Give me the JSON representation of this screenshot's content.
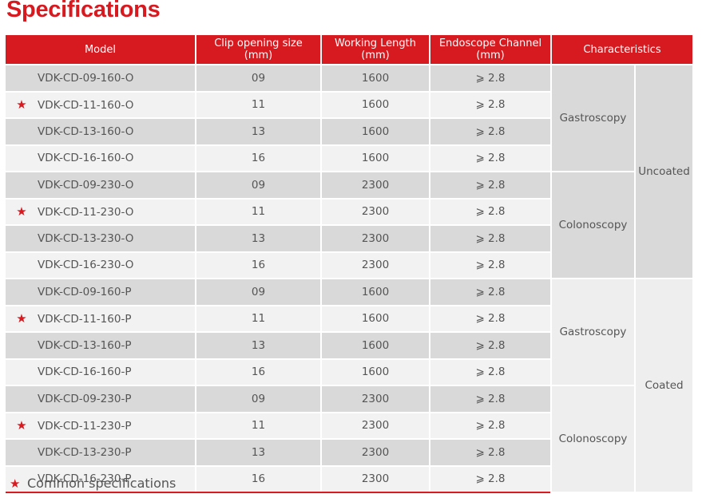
{
  "page": {
    "title": "Specifications",
    "accent_color": "#d71920",
    "star_icon": "★"
  },
  "table": {
    "headers": {
      "model": "Model",
      "clip_opening": "Clip opening size\n(mm)",
      "working_length": "Working Length\n(mm)",
      "channel": "Endoscope Channel\n(mm)",
      "characteristics": "Characteristics"
    },
    "rows": [
      {
        "model": "VDK-CD-09-160-O",
        "clip": "09",
        "length": "1600",
        "channel": "⩾ 2.8",
        "common": false
      },
      {
        "model": "VDK-CD-11-160-O",
        "clip": "11",
        "length": "1600",
        "channel": "⩾ 2.8",
        "common": true
      },
      {
        "model": "VDK-CD-13-160-O",
        "clip": "13",
        "length": "1600",
        "channel": "⩾ 2.8",
        "common": false
      },
      {
        "model": "VDK-CD-16-160-O",
        "clip": "16",
        "length": "1600",
        "channel": "⩾ 2.8",
        "common": false
      },
      {
        "model": "VDK-CD-09-230-O",
        "clip": "09",
        "length": "2300",
        "channel": "⩾ 2.8",
        "common": false
      },
      {
        "model": "VDK-CD-11-230-O",
        "clip": "11",
        "length": "2300",
        "channel": "⩾ 2.8",
        "common": true
      },
      {
        "model": "VDK-CD-13-230-O",
        "clip": "13",
        "length": "2300",
        "channel": "⩾ 2.8",
        "common": false
      },
      {
        "model": "VDK-CD-16-230-O",
        "clip": "16",
        "length": "2300",
        "channel": "⩾ 2.8",
        "common": false
      },
      {
        "model": "VDK-CD-09-160-P",
        "clip": "09",
        "length": "1600",
        "channel": "⩾ 2.8",
        "common": false
      },
      {
        "model": "VDK-CD-11-160-P",
        "clip": "11",
        "length": "1600",
        "channel": "⩾ 2.8",
        "common": true
      },
      {
        "model": "VDK-CD-13-160-P",
        "clip": "13",
        "length": "1600",
        "channel": "⩾ 2.8",
        "common": false
      },
      {
        "model": "VDK-CD-16-160-P",
        "clip": "16",
        "length": "1600",
        "channel": "⩾ 2.8",
        "common": false
      },
      {
        "model": "VDK-CD-09-230-P",
        "clip": "09",
        "length": "2300",
        "channel": "⩾ 2.8",
        "common": false
      },
      {
        "model": "VDK-CD-11-230-P",
        "clip": "11",
        "length": "2300",
        "channel": "⩾ 2.8",
        "common": true
      },
      {
        "model": "VDK-CD-13-230-P",
        "clip": "13",
        "length": "2300",
        "channel": "⩾ 2.8",
        "common": false
      },
      {
        "model": "VDK-CD-16-230-P",
        "clip": "16",
        "length": "2300",
        "channel": "⩾ 2.8",
        "common": false
      }
    ],
    "application_groups": [
      "Gastroscopy",
      "Colonoscopy",
      "Gastroscopy",
      "Colonoscopy"
    ],
    "coating_groups": [
      "Uncoated",
      "Coated"
    ]
  },
  "legend": {
    "text": "Common specifications"
  }
}
